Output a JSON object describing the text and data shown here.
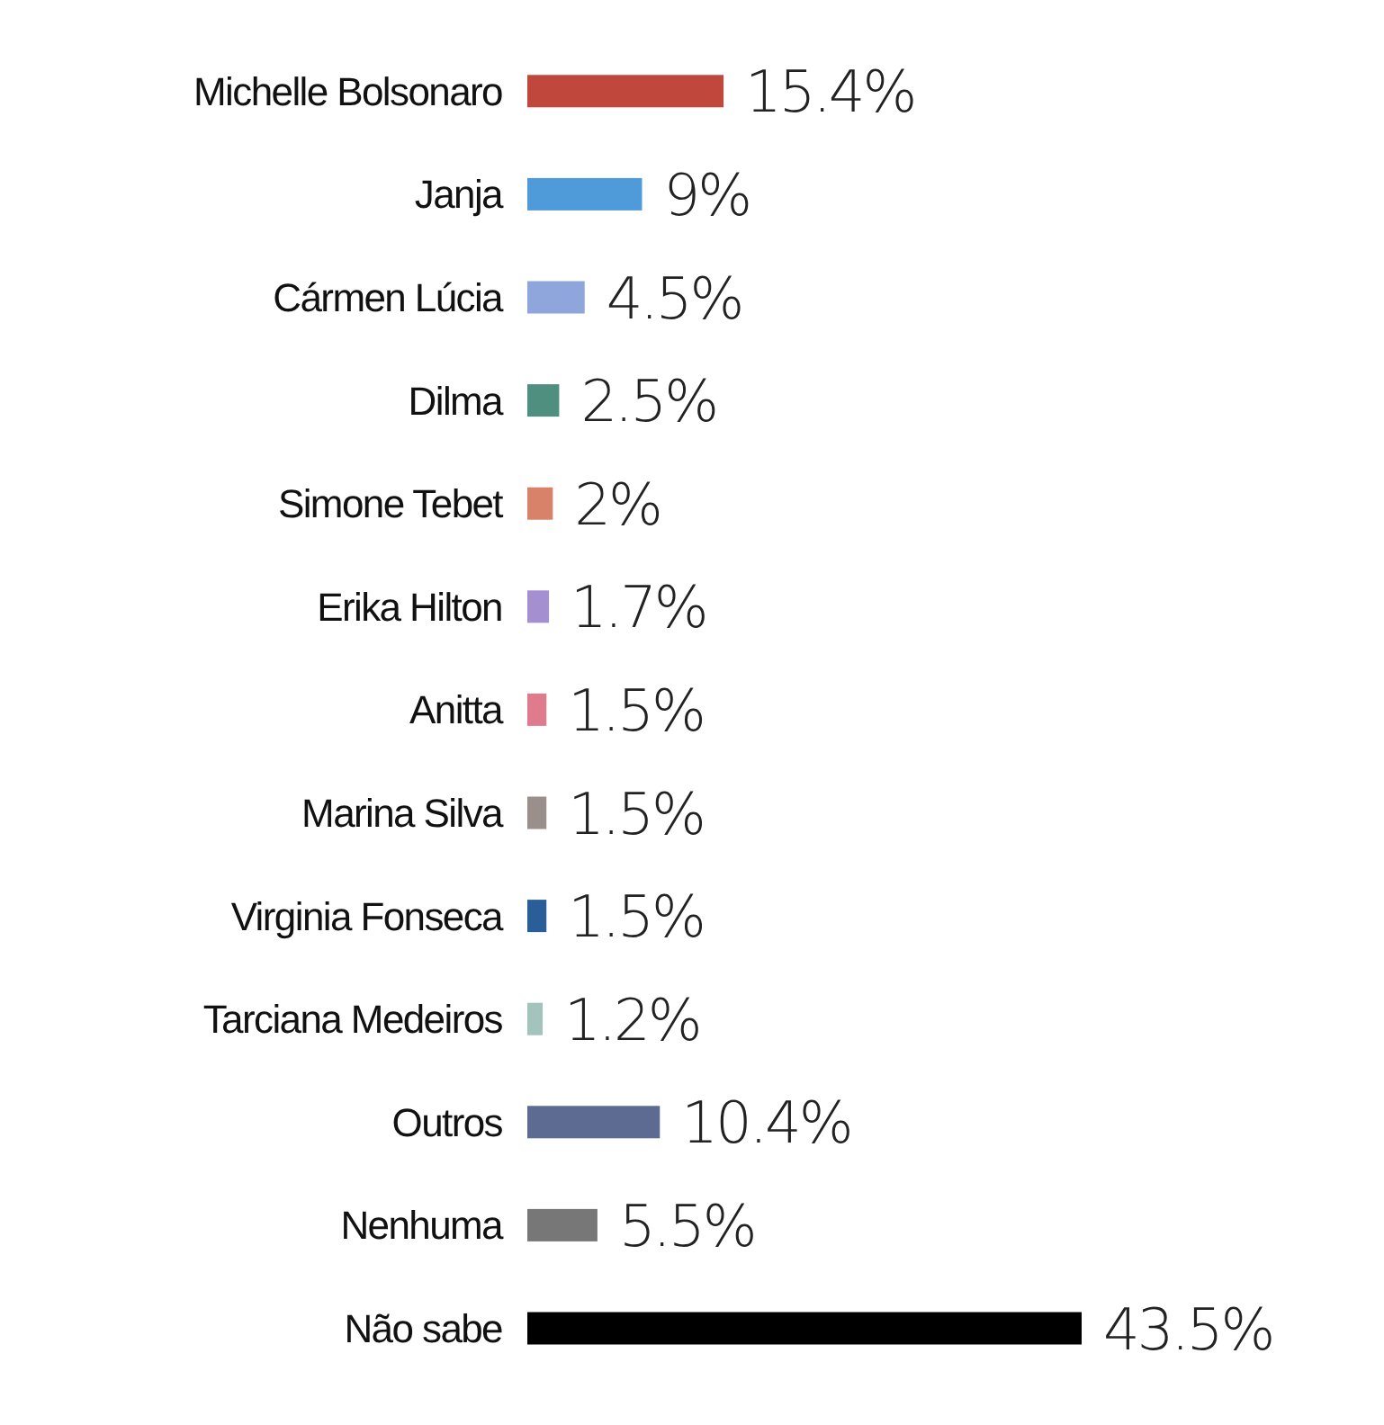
{
  "chart_data": {
    "type": "bar",
    "orientation": "horizontal",
    "categories": [
      "Michelle Bolsonaro",
      "Janja",
      "Cármen Lúcia",
      "Dilma",
      "Simone Tebet",
      "Erika Hilton",
      "Anitta",
      "Marina Silva",
      "Virginia Fonseca",
      "Tarciana Medeiros",
      "Outros",
      "Nenhuma",
      "Não sabe"
    ],
    "values": [
      15.4,
      9,
      4.5,
      2.5,
      2,
      1.7,
      1.5,
      1.5,
      1.5,
      1.2,
      10.4,
      5.5,
      43.5
    ],
    "colors": [
      "#c0473c",
      "#4f9ad8",
      "#8fa6dc",
      "#4f8f80",
      "#d9826a",
      "#a48fd0",
      "#e07b8e",
      "#9a8f8b",
      "#2a5e99",
      "#a3c4bc",
      "#5d6a91",
      "#777777",
      "#000000"
    ],
    "value_labels": [
      "15.4%",
      "9%",
      "4.5%",
      "2.5%",
      "2%",
      "1.7%",
      "1.5%",
      "1.5%",
      "1.5%",
      "1.2%",
      "10.4%",
      "5.5%",
      "43.5%"
    ]
  }
}
